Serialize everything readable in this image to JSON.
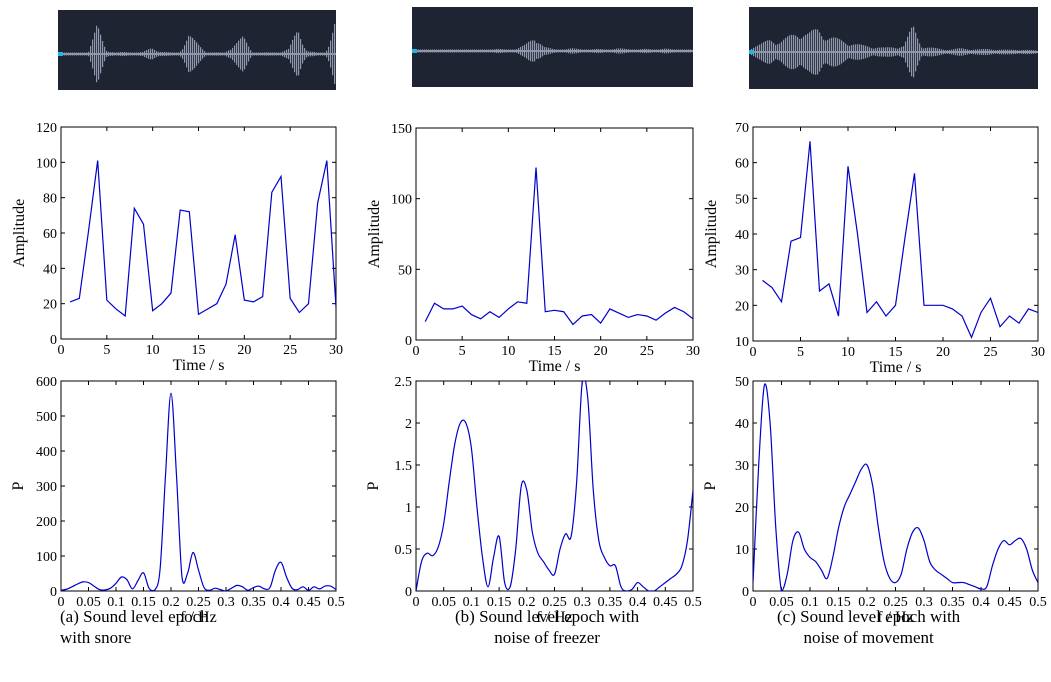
{
  "colors": {
    "line": "#0000cc",
    "wave_bg": "#1e2431",
    "wave_fg": "#8f97aa",
    "wave_cursor": "#22b5e8"
  },
  "captions": [
    {
      "line1": "(a) Sound level epoch",
      "line2": "with snore"
    },
    {
      "line1": "(b) Sound level epoch with",
      "line2": "noise of freezer"
    },
    {
      "line1": "(c) Sound level epoch with",
      "line2": "noise of movement"
    }
  ],
  "chart_data": [
    {
      "id": "a-wave",
      "type": "line",
      "title": "",
      "xlabel": "",
      "ylabel": "",
      "x": [
        0,
        1,
        2,
        3,
        4,
        5,
        6,
        7,
        8,
        9,
        10,
        11,
        12,
        13,
        14,
        15,
        16,
        17,
        18,
        19,
        20,
        21,
        22,
        23,
        24,
        25,
        26,
        27,
        28,
        29,
        30
      ],
      "y": [
        0.02,
        0.02,
        0.03,
        0.02,
        0.55,
        0.08,
        0.03,
        0.04,
        0.03,
        0.04,
        0.12,
        0.05,
        0.03,
        0.03,
        0.38,
        0.2,
        0.04,
        0.03,
        0.03,
        0.2,
        0.33,
        0.03,
        0.03,
        0.03,
        0.04,
        0.1,
        0.5,
        0.06,
        0.03,
        0.02,
        0.62
      ]
    },
    {
      "id": "a-amp",
      "type": "line",
      "title": "",
      "xlabel": "Time / s",
      "ylabel": "Amplitude",
      "xlim": [
        0,
        30
      ],
      "ylim": [
        0,
        120
      ],
      "xticks": [
        0,
        5,
        10,
        15,
        20,
        25,
        30
      ],
      "yticks": [
        0,
        20,
        40,
        60,
        80,
        100,
        120
      ],
      "x": [
        1,
        2,
        3,
        4,
        5,
        6,
        7,
        8,
        9,
        10,
        11,
        12,
        13,
        14,
        15,
        16,
        17,
        18,
        19,
        20,
        21,
        22,
        23,
        24,
        25,
        26,
        27,
        28,
        29,
        30
      ],
      "y": [
        21,
        23,
        61,
        101,
        22,
        17,
        13,
        74,
        65,
        16,
        20,
        26,
        73,
        72,
        14,
        17,
        20,
        31,
        59,
        22,
        21,
        24,
        83,
        92,
        23,
        15,
        20,
        77,
        101,
        18
      ]
    },
    {
      "id": "a-psd",
      "type": "line",
      "title": "",
      "xlabel": "f / Hz",
      "ylabel": "P",
      "xlim": [
        0,
        0.5
      ],
      "ylim": [
        0,
        600
      ],
      "xticks": [
        0,
        0.05,
        0.1,
        0.15,
        0.2,
        0.25,
        0.3,
        0.35,
        0.4,
        0.45,
        0.5
      ],
      "yticks": [
        0,
        100,
        200,
        300,
        400,
        500,
        600
      ],
      "x": [
        0,
        0.01,
        0.02,
        0.03,
        0.04,
        0.05,
        0.06,
        0.07,
        0.08,
        0.09,
        0.1,
        0.11,
        0.12,
        0.13,
        0.14,
        0.15,
        0.16,
        0.17,
        0.18,
        0.19,
        0.2,
        0.21,
        0.22,
        0.23,
        0.24,
        0.25,
        0.26,
        0.27,
        0.28,
        0.29,
        0.3,
        0.31,
        0.32,
        0.33,
        0.34,
        0.35,
        0.36,
        0.37,
        0.38,
        0.39,
        0.4,
        0.41,
        0.42,
        0.43,
        0.44,
        0.45,
        0.46,
        0.47,
        0.48,
        0.49,
        0.5
      ],
      "y": [
        2,
        5,
        12,
        20,
        26,
        24,
        14,
        4,
        3,
        8,
        22,
        40,
        32,
        6,
        30,
        52,
        8,
        2,
        60,
        330,
        565,
        330,
        40,
        50,
        110,
        60,
        10,
        2,
        8,
        4,
        0,
        8,
        16,
        12,
        2,
        10,
        14,
        6,
        10,
        60,
        82,
        40,
        8,
        4,
        12,
        2,
        12,
        6,
        14,
        14,
        4
      ]
    },
    {
      "id": "b-wave",
      "type": "line",
      "title": "",
      "xlabel": "",
      "ylabel": "",
      "x": [
        0,
        1,
        2,
        3,
        4,
        5,
        6,
        7,
        8,
        9,
        10,
        11,
        12,
        13,
        14,
        15,
        16,
        17,
        18,
        19,
        20,
        21,
        22,
        23,
        24,
        25,
        26,
        27,
        28,
        29,
        30
      ],
      "y": [
        0.02,
        0.02,
        0.03,
        0.02,
        0.03,
        0.02,
        0.03,
        0.02,
        0.03,
        0.04,
        0.03,
        0.04,
        0.12,
        0.3,
        0.08,
        0.04,
        0.03,
        0.05,
        0.04,
        0.03,
        0.04,
        0.03,
        0.05,
        0.04,
        0.03,
        0.04,
        0.03,
        0.05,
        0.03,
        0.02,
        0.02
      ]
    },
    {
      "id": "b-amp",
      "type": "line",
      "title": "",
      "xlabel": "Time / s",
      "ylabel": "Amplitude",
      "xlim": [
        0,
        30
      ],
      "ylim": [
        0,
        150
      ],
      "xticks": [
        0,
        5,
        10,
        15,
        20,
        25,
        30
      ],
      "yticks": [
        0,
        50,
        100,
        150
      ],
      "x": [
        1,
        2,
        3,
        4,
        5,
        6,
        7,
        8,
        9,
        10,
        11,
        12,
        13,
        14,
        15,
        16,
        17,
        18,
        19,
        20,
        21,
        22,
        23,
        24,
        25,
        26,
        27,
        28,
        29,
        30
      ],
      "y": [
        13,
        26,
        22,
        22,
        24,
        18,
        15,
        20,
        16,
        22,
        27,
        26,
        122,
        20,
        21,
        20,
        11,
        17,
        18,
        12,
        22,
        19,
        16,
        18,
        17,
        14,
        19,
        23,
        20,
        15
      ]
    },
    {
      "id": "b-psd",
      "type": "line",
      "title": "",
      "xlabel": "f / Hz",
      "ylabel": "P",
      "xlim": [
        0,
        0.5
      ],
      "ylim": [
        0,
        2.5
      ],
      "xticks": [
        0,
        0.05,
        0.1,
        0.15,
        0.2,
        0.25,
        0.3,
        0.35,
        0.4,
        0.45,
        0.5
      ],
      "yticks": [
        0,
        0.5,
        1,
        1.5,
        2,
        2.5
      ],
      "x": [
        0,
        0.01,
        0.02,
        0.03,
        0.04,
        0.05,
        0.06,
        0.07,
        0.08,
        0.09,
        0.1,
        0.11,
        0.12,
        0.13,
        0.14,
        0.15,
        0.16,
        0.17,
        0.18,
        0.19,
        0.2,
        0.21,
        0.22,
        0.23,
        0.24,
        0.25,
        0.26,
        0.27,
        0.28,
        0.29,
        0.3,
        0.31,
        0.32,
        0.33,
        0.34,
        0.35,
        0.36,
        0.37,
        0.38,
        0.39,
        0.4,
        0.41,
        0.42,
        0.43,
        0.44,
        0.45,
        0.46,
        0.47,
        0.48,
        0.49,
        0.5
      ],
      "y": [
        0,
        0.35,
        0.45,
        0.42,
        0.52,
        0.8,
        1.3,
        1.75,
        2.0,
        2.0,
        1.7,
        1.0,
        0.4,
        0.05,
        0.4,
        0.65,
        0.1,
        0.05,
        0.5,
        1.25,
        1.2,
        0.7,
        0.45,
        0.35,
        0.25,
        0.2,
        0.5,
        0.68,
        0.65,
        1.3,
        2.48,
        2.3,
        1.2,
        0.6,
        0.4,
        0.3,
        0.3,
        0.05,
        0,
        0.02,
        0.1,
        0.05,
        0,
        0,
        0.05,
        0.1,
        0.15,
        0.2,
        0.3,
        0.6,
        1.2
      ]
    },
    {
      "id": "c-wave",
      "type": "line",
      "title": "",
      "xlabel": "",
      "ylabel": "",
      "x": [
        0,
        1,
        2,
        3,
        4,
        5,
        6,
        7,
        8,
        9,
        10,
        11,
        12,
        13,
        14,
        15,
        16,
        17,
        18,
        19,
        20,
        21,
        22,
        23,
        24,
        25,
        26,
        27,
        28,
        29,
        30
      ],
      "y": [
        0.1,
        0.15,
        0.25,
        0.2,
        0.3,
        0.4,
        0.35,
        0.45,
        0.3,
        0.25,
        0.2,
        0.15,
        0.12,
        0.1,
        0.08,
        0.1,
        0.12,
        0.5,
        0.1,
        0.08,
        0.06,
        0.05,
        0.07,
        0.06,
        0.05,
        0.06,
        0.05,
        0.04,
        0.05,
        0.04,
        0.03
      ]
    },
    {
      "id": "c-amp",
      "type": "line",
      "title": "",
      "xlabel": "Time / s",
      "ylabel": "Amplitude",
      "xlim": [
        0,
        30
      ],
      "ylim": [
        10,
        70
      ],
      "xticks": [
        0,
        5,
        10,
        15,
        20,
        25,
        30
      ],
      "yticks": [
        10,
        20,
        30,
        40,
        50,
        60,
        70
      ],
      "x": [
        1,
        2,
        3,
        4,
        5,
        6,
        7,
        8,
        9,
        10,
        11,
        12,
        13,
        14,
        15,
        16,
        17,
        18,
        19,
        20,
        21,
        22,
        23,
        24,
        25,
        26,
        27,
        28,
        29,
        30
      ],
      "y": [
        27,
        25,
        21,
        38,
        39,
        66,
        24,
        26,
        17,
        59,
        40,
        18,
        21,
        17,
        20,
        39,
        57,
        20,
        20,
        20,
        19,
        17,
        11,
        18,
        22,
        14,
        17,
        15,
        19,
        18
      ]
    },
    {
      "id": "c-psd",
      "type": "line",
      "title": "",
      "xlabel": "f / Hz",
      "ylabel": "P",
      "xlim": [
        0,
        0.5
      ],
      "ylim": [
        0,
        50
      ],
      "xticks": [
        0,
        0.05,
        0.1,
        0.15,
        0.2,
        0.25,
        0.3,
        0.35,
        0.4,
        0.45,
        0.5
      ],
      "yticks": [
        0,
        10,
        20,
        30,
        40,
        50
      ],
      "x": [
        0,
        0.01,
        0.02,
        0.03,
        0.04,
        0.05,
        0.06,
        0.07,
        0.08,
        0.09,
        0.1,
        0.11,
        0.12,
        0.13,
        0.14,
        0.15,
        0.16,
        0.17,
        0.18,
        0.19,
        0.2,
        0.21,
        0.22,
        0.23,
        0.24,
        0.25,
        0.26,
        0.27,
        0.28,
        0.29,
        0.3,
        0.31,
        0.32,
        0.33,
        0.34,
        0.35,
        0.36,
        0.37,
        0.38,
        0.39,
        0.4,
        0.41,
        0.42,
        0.43,
        0.44,
        0.45,
        0.46,
        0.47,
        0.48,
        0.49,
        0.5
      ],
      "y": [
        2,
        30,
        49,
        40,
        15,
        0,
        4,
        12,
        14,
        10,
        8,
        7,
        5,
        3,
        8,
        15,
        20,
        23,
        26,
        29,
        30,
        25,
        15,
        7,
        3,
        2,
        4,
        10,
        14,
        15,
        12,
        7,
        5,
        4,
        3,
        2,
        2,
        2,
        1.5,
        1,
        0.5,
        1,
        6,
        10,
        12,
        11,
        12,
        12.5,
        10,
        5,
        2
      ]
    }
  ]
}
